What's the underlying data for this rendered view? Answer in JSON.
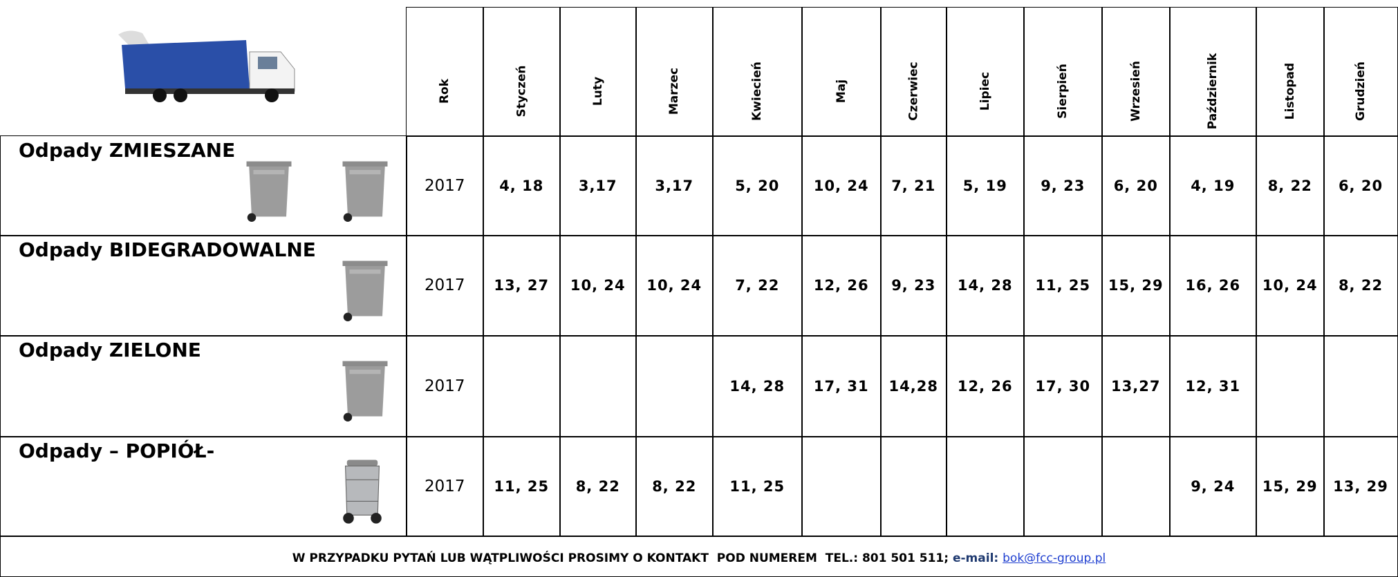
{
  "header": {
    "columns": [
      "Rok",
      "Styczeń",
      "Luty",
      "Marzec",
      "Kwiecień",
      "Maj",
      "Czerwiec",
      "Lipiec",
      "Sierpień",
      "Wrzesień",
      "Październik",
      "Listopad",
      "Grudzień"
    ]
  },
  "rows": [
    {
      "label": "Odpady ZMIESZANE",
      "year": "2017",
      "dates": [
        "4, 18",
        "3,17",
        "3,17",
        "5, 20",
        "10, 24",
        "7, 21",
        "5, 19",
        "9, 23",
        "6, 20",
        "4, 19",
        "8, 22",
        "6, 20"
      ]
    },
    {
      "label": "Odpady BIDEGRADOWALNE",
      "year": "2017",
      "dates": [
        "13, 27",
        "10, 24",
        "10, 24",
        "7, 22",
        "12, 26",
        "9, 23",
        "14, 28",
        "11, 25",
        "15, 29",
        "16, 26",
        "10, 24",
        "8, 22"
      ]
    },
    {
      "label": "Odpady ZIELONE",
      "year": "2017",
      "dates": [
        null,
        null,
        null,
        "14, 28",
        "17, 31",
        "14,28",
        "12, 26",
        "17, 30",
        "13,27",
        "12, 31",
        null,
        null
      ]
    },
    {
      "label": "Odpady – POPIÓŁ-",
      "year": "2017",
      "dates": [
        "11, 25",
        "8, 22",
        "8, 22",
        "11, 25",
        null,
        null,
        null,
        null,
        null,
        "9, 24",
        "15, 29",
        "13, 29"
      ]
    }
  ],
  "footer": {
    "text": "W PRZYPADKU PYTAŃ LUB WĄTPLIWOŚCI PROSIMY O KONTAKT  POD NUMEREM  TEL.: 801 501 511;",
    "email_label": "e-mail:",
    "email": "bok@fcc-group.pl"
  }
}
